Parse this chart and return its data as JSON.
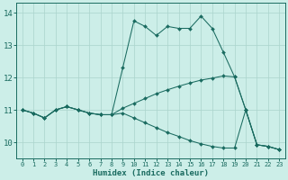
{
  "xlabel": "Humidex (Indice chaleur)",
  "bg_color": "#cceee8",
  "grid_color": "#aad4cc",
  "line_color": "#1a6b60",
  "xlim": [
    -0.5,
    23.5
  ],
  "ylim": [
    9.5,
    14.3
  ],
  "yticks": [
    10,
    11,
    12,
    13,
    14
  ],
  "xticks": [
    0,
    1,
    2,
    3,
    4,
    5,
    6,
    7,
    8,
    9,
    10,
    11,
    12,
    13,
    14,
    15,
    16,
    17,
    18,
    19,
    20,
    21,
    22,
    23
  ],
  "lines": [
    {
      "x": [
        0,
        1,
        2,
        3,
        4,
        5,
        6,
        7,
        8,
        9,
        10,
        11,
        12,
        13,
        14,
        15,
        16,
        17,
        18,
        19,
        20,
        21,
        22,
        23
      ],
      "y": [
        11.0,
        10.9,
        10.75,
        11.0,
        11.1,
        11.0,
        10.9,
        10.85,
        10.85,
        12.3,
        13.75,
        13.58,
        13.3,
        13.58,
        13.52,
        13.52,
        13.9,
        13.52,
        12.78,
        12.02,
        11.0,
        9.92,
        9.87,
        9.77
      ]
    },
    {
      "x": [
        0,
        1,
        2,
        3,
        4,
        5,
        6,
        7,
        8,
        9,
        10,
        11,
        12,
        13,
        14,
        15,
        16,
        17,
        18,
        19,
        20,
        21,
        22,
        23
      ],
      "y": [
        11.0,
        10.9,
        10.75,
        11.0,
        11.1,
        11.0,
        10.9,
        10.85,
        10.85,
        11.05,
        11.2,
        11.35,
        11.5,
        11.62,
        11.73,
        11.83,
        11.92,
        11.98,
        12.05,
        12.02,
        11.0,
        9.92,
        9.87,
        9.77
      ]
    },
    {
      "x": [
        0,
        1,
        2,
        3,
        4,
        5,
        6,
        7,
        8,
        9,
        10,
        11,
        12,
        13,
        14,
        15,
        16,
        17,
        18,
        19,
        20,
        21,
        22,
        23
      ],
      "y": [
        11.0,
        10.9,
        10.75,
        11.0,
        11.1,
        11.0,
        10.9,
        10.85,
        10.85,
        10.9,
        10.75,
        10.6,
        10.45,
        10.3,
        10.18,
        10.05,
        9.95,
        9.87,
        9.82,
        9.82,
        11.0,
        9.92,
        9.87,
        9.77
      ]
    }
  ]
}
